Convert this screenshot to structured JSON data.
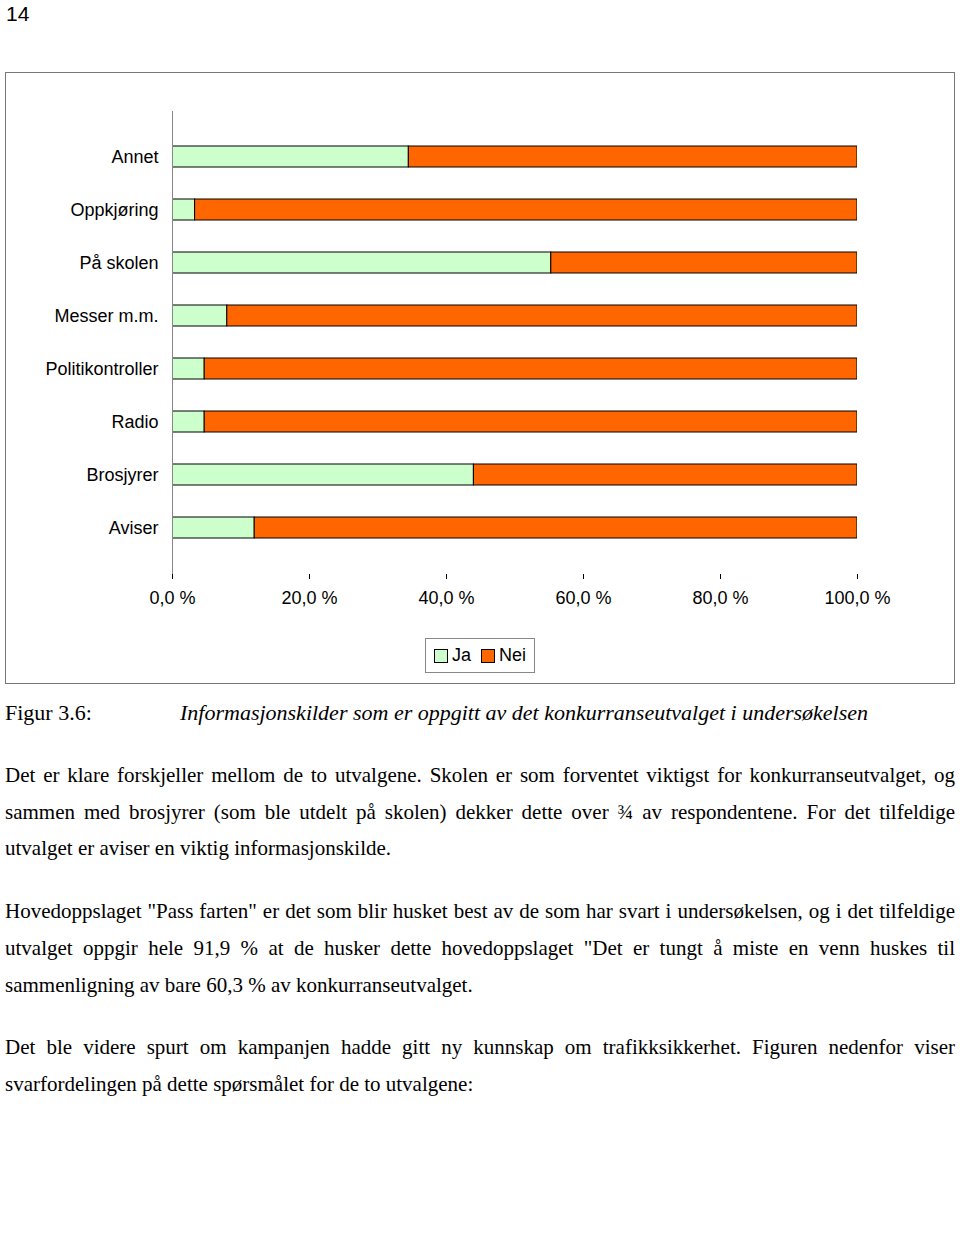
{
  "page_number": "14",
  "chart_data": {
    "type": "bar",
    "orientation": "horizontal",
    "stacked": true,
    "categories": [
      "Annet",
      "Oppkjøring",
      "På skolen",
      "Messer m.m.",
      "Politikontroller",
      "Radio",
      "Brosjyrer",
      "Aviser"
    ],
    "series": [
      {
        "name": "Ja",
        "color": "#ccffcc",
        "values": [
          34.5,
          3.3,
          55.3,
          8,
          4.7,
          4.7,
          44,
          12
        ]
      },
      {
        "name": "Nei",
        "color": "#ff6600",
        "values": [
          65.5,
          96.7,
          44.7,
          92,
          95.3,
          95.3,
          56,
          88
        ]
      }
    ],
    "xlim": [
      0,
      100
    ],
    "xticks": [
      {
        "value": 0,
        "label": "0,0 %"
      },
      {
        "value": 20,
        "label": "20,0 %"
      },
      {
        "value": 40,
        "label": "40,0 %"
      },
      {
        "value": 60,
        "label": "60,0 %"
      },
      {
        "value": 80,
        "label": "80,0 %"
      },
      {
        "value": 100,
        "label": "100,0 %"
      }
    ],
    "grid": false,
    "legend": "bottom"
  },
  "caption": {
    "label": "Figur 3.6:",
    "text": "Informasjonskilder som er oppgitt av det konkurranseutvalget i undersøkelsen"
  },
  "paragraphs": [
    "Det er klare forskjeller mellom de to utvalgene. Skolen er som forventet viktigst for konkurranseutvalget, og sammen med brosjyrer (som ble utdelt på skolen) dekker dette over ¾ av respondentene. For det tilfeldige utvalget er aviser en viktig informasjonskilde.",
    "Hovedoppslaget \"Pass farten\" er det som blir husket best av de som har svart i undersøkelsen, og i det tilfeldige utvalget oppgir hele 91,9 % at de husker dette hovedoppslaget \"Det er tungt å miste en venn huskes til sammenligning av bare 60,3 % av konkurranseutvalget.",
    "Det ble videre spurt om kampanjen hadde gitt ny kunnskap om trafikksikkerhet. Figuren nedenfor viser svarfordelingen på dette spørsmålet for de to utvalgene:"
  ]
}
